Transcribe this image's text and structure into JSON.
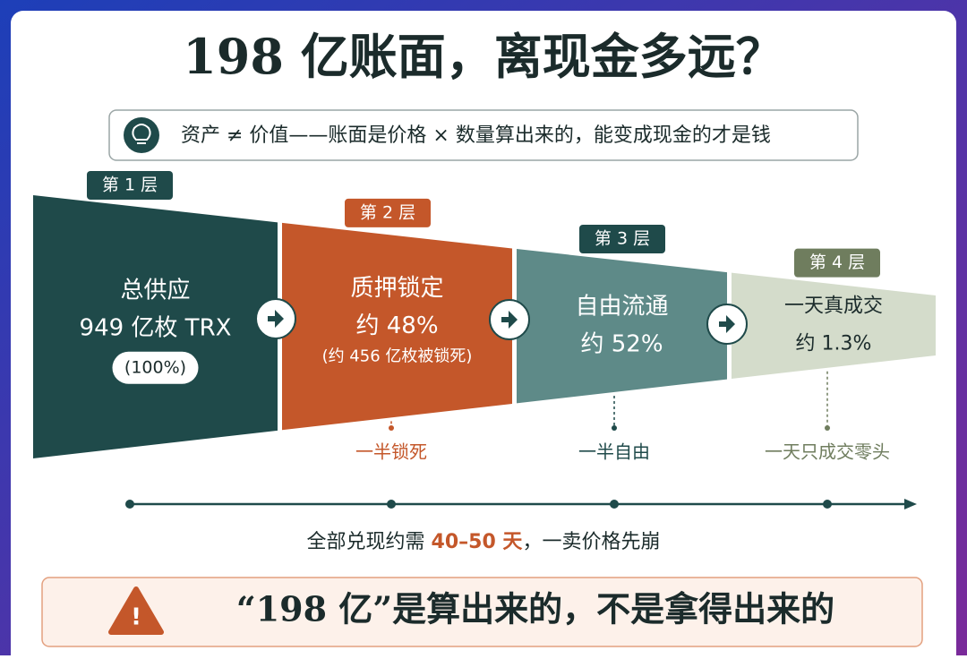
{
  "title": "198 亿账面，离现金多远？",
  "subtitle": "资产 ≠ 价值——账面是价格 × 数量算出来的，能变成现金的才是钱",
  "layers": [
    {
      "badge": "第 1 层",
      "lines": [
        "总供应",
        "949 亿枚 TRX"
      ],
      "pill": "(100%)"
    },
    {
      "badge": "第 2 层",
      "lines": [
        "质押锁定",
        "约 48%",
        "(约 456 亿枚被锁死)"
      ],
      "note": "一半锁死"
    },
    {
      "badge": "第 3 层",
      "lines": [
        "自由流通",
        "约 52%"
      ],
      "note": "一半自由"
    },
    {
      "badge": "第 4 层",
      "lines": [
        "一天真成交",
        "约 1.3%"
      ],
      "note": "一天只成交零头"
    }
  ],
  "timeline": {
    "before": "全部兑现约需 ",
    "highlight": "40–50 天",
    "after": "，一卖价格先崩"
  },
  "warning": "“198 亿”是算出来的，不是拿得出来的"
}
